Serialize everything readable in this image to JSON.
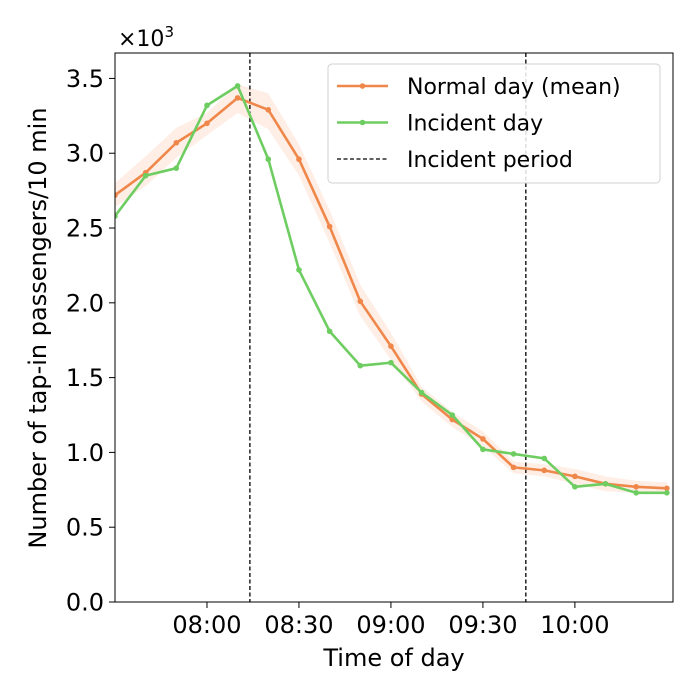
{
  "chart_data": {
    "type": "line",
    "title": "",
    "xlabel": "Time of day",
    "ylabel": "Number of tap-in passengers/10 min",
    "y_multiplier_label": "×10",
    "y_multiplier_exp": "3",
    "x_range_min": [
      450,
      632
    ],
    "ylim": [
      0,
      3.67
    ],
    "x_ticks": [
      {
        "min": 480,
        "label": "08:00"
      },
      {
        "min": 510,
        "label": "08:30"
      },
      {
        "min": 540,
        "label": "09:00"
      },
      {
        "min": 570,
        "label": "09:30"
      },
      {
        "min": 600,
        "label": "10:00"
      }
    ],
    "y_ticks": [
      {
        "value": 0.0,
        "label": "0.0"
      },
      {
        "value": 0.5,
        "label": "0.5"
      },
      {
        "value": 1.0,
        "label": "1.0"
      },
      {
        "value": 1.5,
        "label": "1.5"
      },
      {
        "value": 2.0,
        "label": "2.0"
      },
      {
        "value": 2.5,
        "label": "2.5"
      },
      {
        "value": 3.0,
        "label": "3.0"
      },
      {
        "value": 3.5,
        "label": "3.5"
      }
    ],
    "series": [
      {
        "name": "Normal day (mean)",
        "color": "#f0874a",
        "band_color": "#fde3d4",
        "x": [
          450,
          460,
          470,
          480,
          490,
          500,
          510,
          520,
          530,
          540,
          550,
          560,
          570,
          580,
          590,
          600,
          610,
          620,
          630
        ],
        "values": [
          2.72,
          2.87,
          3.07,
          3.2,
          3.37,
          3.29,
          2.96,
          2.51,
          2.01,
          1.71,
          1.39,
          1.22,
          1.09,
          0.9,
          0.88,
          0.84,
          0.79,
          0.77,
          0.76
        ],
        "band_upper": [
          2.8,
          2.98,
          3.17,
          3.27,
          3.46,
          3.4,
          3.06,
          2.62,
          2.12,
          1.8,
          1.44,
          1.27,
          1.14,
          0.94,
          0.92,
          0.89,
          0.84,
          0.81,
          0.8
        ],
        "band_lower": [
          2.64,
          2.78,
          2.97,
          3.12,
          3.27,
          3.16,
          2.85,
          2.4,
          1.91,
          1.62,
          1.34,
          1.17,
          1.04,
          0.86,
          0.84,
          0.79,
          0.74,
          0.73,
          0.72
        ]
      },
      {
        "name": "Incident day",
        "color": "#6ecd61",
        "x": [
          450,
          460,
          470,
          480,
          490,
          500,
          510,
          520,
          530,
          540,
          550,
          560,
          570,
          580,
          590,
          600,
          610,
          620,
          630
        ],
        "values": [
          2.58,
          2.85,
          2.9,
          3.32,
          3.45,
          2.96,
          2.22,
          1.81,
          1.58,
          1.6,
          1.4,
          1.25,
          1.02,
          0.99,
          0.96,
          0.77,
          0.79,
          0.73,
          0.73
        ]
      }
    ],
    "incident_period": {
      "name": "Incident period",
      "color": "#000000",
      "x_start": 494,
      "x_end": 584
    },
    "legend": {
      "position": "top-right",
      "entries": [
        "Normal day (mean)",
        "Incident day",
        "Incident period"
      ]
    }
  }
}
